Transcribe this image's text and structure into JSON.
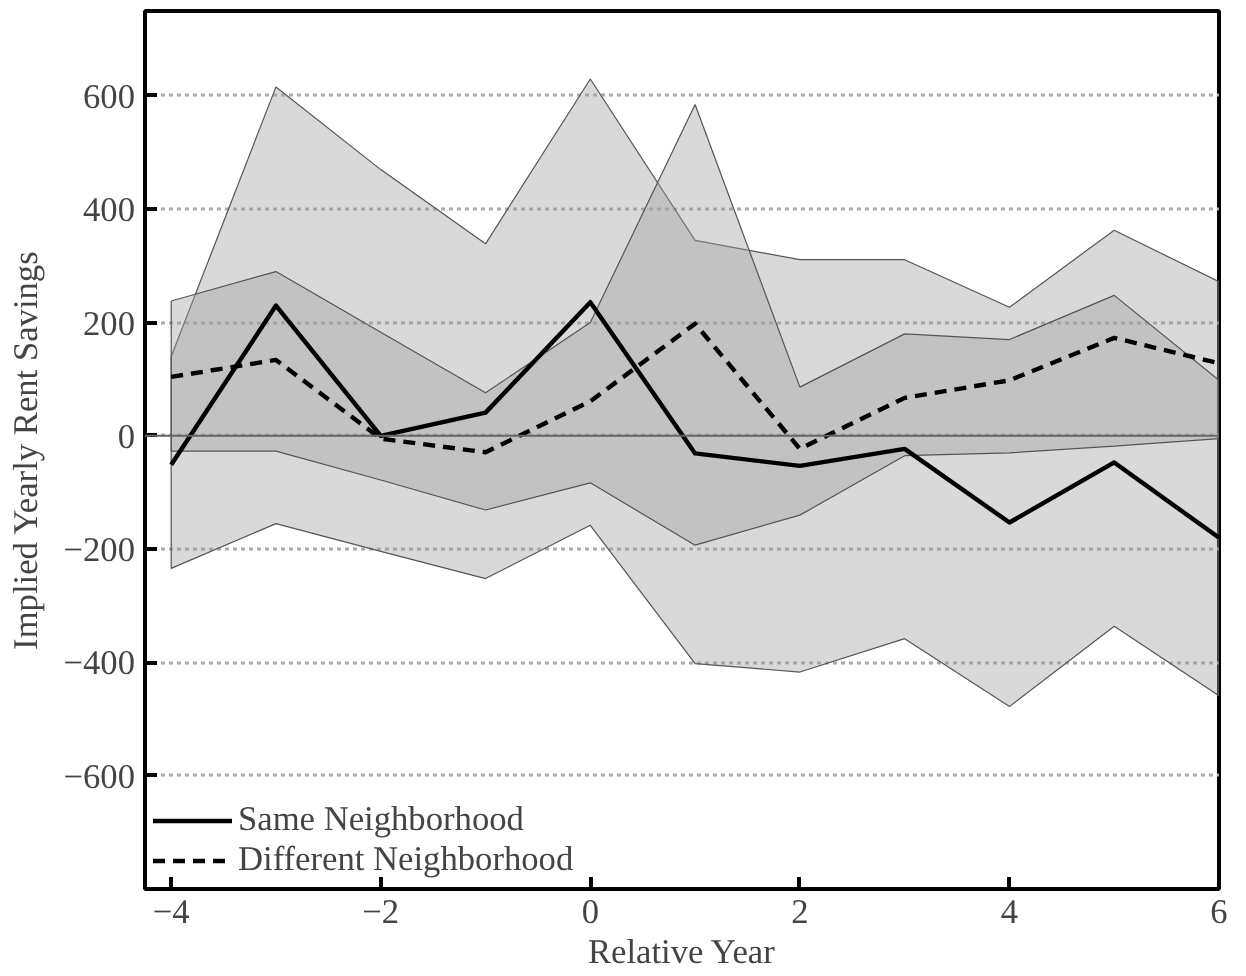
{
  "chart_data": {
    "type": "line",
    "xlabel": "Relative Year",
    "ylabel": "Implied Yearly Rent Savings",
    "x": [
      -4,
      -3,
      -2,
      -1,
      0,
      1,
      2,
      3,
      4,
      5,
      6
    ],
    "series": [
      {
        "name": "Same Neighborhood",
        "color": "#000000",
        "line_style": "solid",
        "values": [
          -51,
          230,
          0,
          41,
          236,
          -31,
          -53,
          -23,
          -153,
          -47,
          -180
        ],
        "lower": [
          -234,
          -155,
          -204,
          -252,
          -158,
          -402,
          -417,
          -358,
          -478,
          -336,
          -459
        ],
        "upper": [
          140,
          616,
          470,
          339,
          630,
          345,
          311,
          311,
          227,
          363,
          272
        ]
      },
      {
        "name": "Different Neighborhood",
        "color": "#000000",
        "line_style": "dashed",
        "values": [
          104,
          134,
          -5,
          -29,
          61,
          198,
          -23,
          67,
          98,
          173,
          128
        ],
        "lower": [
          -27,
          -27,
          -78,
          -131,
          -83,
          -193,
          -140,
          -35,
          -30,
          -18,
          -5
        ],
        "upper": [
          238,
          290,
          183,
          76,
          200,
          585,
          86,
          180,
          170,
          248,
          98
        ]
      }
    ],
    "xlim": [
      -4.25,
      6
    ],
    "ylim": [
      -800,
      750
    ],
    "xticks": [
      -4,
      -2,
      0,
      2,
      4,
      6
    ],
    "yticks": [
      -600,
      -400,
      -200,
      0,
      200,
      400,
      600
    ],
    "ref_lines": [
      {
        "axis": "y",
        "value": 0,
        "color": "#666666"
      }
    ],
    "grid": "y",
    "legend": "bottom left"
  }
}
